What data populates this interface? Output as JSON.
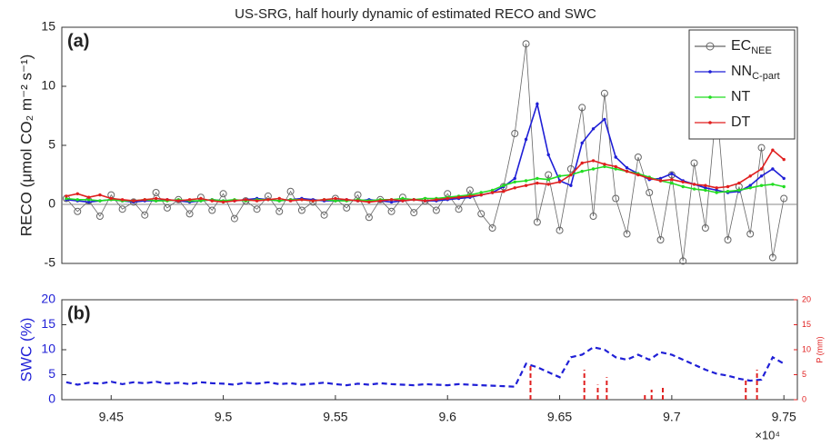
{
  "chart_data": [
    {
      "type": "line",
      "title": "US-SRG, half hourly dynamic of estimated RECO and SWC",
      "panel_label": "(a)",
      "y_label": "RECO (μmol CO₂ m⁻² s⁻¹)",
      "x": [
        9.43,
        9.435,
        9.44,
        9.445,
        9.45,
        9.455,
        9.46,
        9.465,
        9.47,
        9.475,
        9.48,
        9.485,
        9.49,
        9.495,
        9.5,
        9.505,
        9.51,
        9.515,
        9.52,
        9.525,
        9.53,
        9.535,
        9.54,
        9.545,
        9.55,
        9.555,
        9.56,
        9.565,
        9.57,
        9.575,
        9.58,
        9.585,
        9.59,
        9.595,
        9.6,
        9.605,
        9.61,
        9.615,
        9.62,
        9.625,
        9.63,
        9.635,
        9.64,
        9.645,
        9.65,
        9.655,
        9.66,
        9.665,
        9.67,
        9.675,
        9.68,
        9.685,
        9.69,
        9.695,
        9.7,
        9.705,
        9.71,
        9.715,
        9.72,
        9.725,
        9.73,
        9.735,
        9.74,
        9.745,
        9.75
      ],
      "xlim": [
        9.428,
        9.756
      ],
      "ylim": [
        -5,
        15
      ],
      "yticks": [
        -5,
        0,
        5,
        10,
        15
      ],
      "hline": 0,
      "legend": "upper right",
      "series": [
        {
          "name": "EC",
          "subscript": "NEE",
          "color": "#666666",
          "marker": "circle",
          "values": [
            0.5,
            -0.6,
            0.3,
            -1.0,
            0.8,
            -0.4,
            0.2,
            -0.9,
            1.0,
            -0.3,
            0.4,
            -0.8,
            0.6,
            -0.5,
            0.9,
            -1.2,
            0.3,
            -0.4,
            0.7,
            -0.6,
            1.1,
            -0.5,
            0.2,
            -0.9,
            0.5,
            -0.3,
            0.8,
            -1.1,
            0.4,
            -0.6,
            0.6,
            -0.7,
            0.3,
            -0.5,
            0.9,
            -0.4,
            1.2,
            -0.8,
            -2.0,
            1.5,
            6.0,
            13.6,
            -1.5,
            2.5,
            -2.2,
            3.0,
            8.2,
            -1.0,
            9.4,
            0.5,
            -2.5,
            4.0,
            1.0,
            -3.0,
            2.5,
            -4.8,
            3.5,
            -2.0,
            8.5,
            -3.0,
            1.5,
            -2.5,
            4.8,
            -4.5,
            0.5
          ]
        },
        {
          "name": "NN",
          "subscript": "C-part",
          "color": "#1f1fd6",
          "marker": "dot",
          "values": [
            0.4,
            0.3,
            0.2,
            0.3,
            0.4,
            0.3,
            0.2,
            0.3,
            0.3,
            0.4,
            0.3,
            0.2,
            0.3,
            0.4,
            0.3,
            0.3,
            0.4,
            0.5,
            0.4,
            0.3,
            0.4,
            0.5,
            0.4,
            0.3,
            0.3,
            0.4,
            0.3,
            0.4,
            0.3,
            0.2,
            0.3,
            0.4,
            0.3,
            0.3,
            0.4,
            0.5,
            0.6,
            0.8,
            1.0,
            1.5,
            2.2,
            5.5,
            8.5,
            4.2,
            2.0,
            1.6,
            5.2,
            6.4,
            7.2,
            4.0,
            3.1,
            2.6,
            2.1,
            2.2,
            2.6,
            2.0,
            1.7,
            1.4,
            1.2,
            1.0,
            1.1,
            1.6,
            2.4,
            3.0,
            2.2
          ]
        },
        {
          "name": "NT",
          "color": "#22dd22",
          "marker": "dot",
          "values": [
            0.5,
            0.4,
            0.4,
            0.3,
            0.4,
            0.3,
            0.3,
            0.4,
            0.3,
            0.3,
            0.4,
            0.3,
            0.3,
            0.4,
            0.3,
            0.4,
            0.3,
            0.4,
            0.4,
            0.3,
            0.4,
            0.4,
            0.3,
            0.4,
            0.3,
            0.3,
            0.4,
            0.3,
            0.4,
            0.4,
            0.5,
            0.4,
            0.5,
            0.5,
            0.6,
            0.7,
            0.8,
            1.0,
            1.2,
            1.6,
            1.9,
            2.0,
            2.2,
            2.1,
            2.4,
            2.5,
            2.8,
            3.0,
            3.2,
            3.0,
            2.8,
            2.6,
            2.3,
            2.0,
            1.8,
            1.5,
            1.3,
            1.2,
            1.0,
            1.1,
            1.2,
            1.4,
            1.6,
            1.7,
            1.5
          ]
        },
        {
          "name": "DT",
          "color": "#e01f1f",
          "marker": "dot",
          "values": [
            0.7,
            0.9,
            0.6,
            0.8,
            0.5,
            0.4,
            0.3,
            0.4,
            0.5,
            0.4,
            0.3,
            0.4,
            0.5,
            0.3,
            0.2,
            0.3,
            0.4,
            0.3,
            0.4,
            0.5,
            0.3,
            0.4,
            0.3,
            0.4,
            0.5,
            0.4,
            0.3,
            0.2,
            0.3,
            0.4,
            0.3,
            0.4,
            0.3,
            0.4,
            0.5,
            0.6,
            0.7,
            0.8,
            1.0,
            1.1,
            1.4,
            1.6,
            1.8,
            1.7,
            1.9,
            2.5,
            3.5,
            3.7,
            3.4,
            3.2,
            2.8,
            2.5,
            2.2,
            2.0,
            2.1,
            1.9,
            1.7,
            1.6,
            1.4,
            1.5,
            1.8,
            2.4,
            3.0,
            4.6,
            3.8
          ]
        }
      ]
    },
    {
      "type": "line",
      "panel_label": "(b)",
      "y_label": "SWC (%)",
      "y2_label": "P (mm)",
      "x_exponent": "×10⁴",
      "x": [
        9.43,
        9.435,
        9.44,
        9.445,
        9.45,
        9.455,
        9.46,
        9.465,
        9.47,
        9.475,
        9.48,
        9.485,
        9.49,
        9.495,
        9.5,
        9.505,
        9.51,
        9.515,
        9.52,
        9.525,
        9.53,
        9.535,
        9.54,
        9.545,
        9.55,
        9.555,
        9.56,
        9.565,
        9.57,
        9.575,
        9.58,
        9.585,
        9.59,
        9.595,
        9.6,
        9.605,
        9.61,
        9.615,
        9.62,
        9.625,
        9.63,
        9.635,
        9.64,
        9.645,
        9.65,
        9.655,
        9.66,
        9.665,
        9.67,
        9.675,
        9.68,
        9.685,
        9.69,
        9.695,
        9.7,
        9.705,
        9.71,
        9.715,
        9.72,
        9.725,
        9.73,
        9.735,
        9.74,
        9.745,
        9.75
      ],
      "xlim": [
        9.428,
        9.756
      ],
      "xticks": [
        9.45,
        9.5,
        9.55,
        9.6,
        9.65,
        9.7,
        9.75
      ],
      "ylim": [
        0,
        20
      ],
      "yticks": [
        0,
        5,
        10,
        15,
        20
      ],
      "y2lim": [
        0,
        20
      ],
      "y2ticks": [
        0,
        5,
        10,
        15,
        20
      ],
      "y_color": "#1f1fd6",
      "y2_color": "#e01f1f",
      "series": [
        {
          "color": "#1f1fd6",
          "dash": true,
          "values": [
            3.5,
            3.0,
            3.4,
            3.2,
            3.6,
            3.1,
            3.5,
            3.3,
            3.6,
            3.2,
            3.4,
            3.1,
            3.5,
            3.3,
            3.2,
            3.0,
            3.4,
            3.2,
            3.5,
            3.1,
            3.3,
            3.0,
            3.2,
            3.4,
            3.1,
            2.9,
            3.2,
            3.0,
            3.3,
            3.1,
            3.0,
            2.9,
            3.1,
            3.0,
            2.9,
            3.1,
            3.0,
            2.9,
            2.8,
            2.7,
            2.6,
            7.2,
            6.5,
            5.5,
            4.5,
            8.5,
            9.0,
            10.5,
            10.0,
            8.5,
            8.0,
            9.0,
            8.0,
            9.5,
            9.0,
            8.0,
            7.0,
            6.0,
            5.2,
            4.8,
            4.2,
            3.8,
            4.0,
            8.5,
            7.2
          ]
        },
        {
          "color": "#e01f1f",
          "kind": "bar",
          "axis": "y2",
          "x": [
            9.637,
            9.661,
            9.667,
            9.671,
            9.688,
            9.691,
            9.696,
            9.733,
            9.738
          ],
          "values": [
            7,
            6,
            3,
            4.5,
            1,
            2,
            2.5,
            4,
            6
          ]
        }
      ]
    }
  ]
}
